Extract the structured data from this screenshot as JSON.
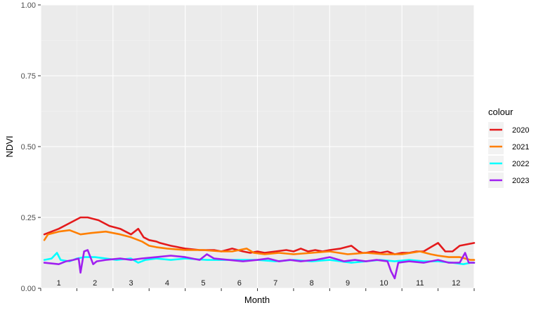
{
  "chart_data": {
    "type": "line",
    "xlabel": "Month",
    "ylabel": "NDVI",
    "ylim": [
      0,
      1
    ],
    "xlim": [
      0,
      12
    ],
    "y_ticks": [
      "0.00",
      "0.25",
      "0.50",
      "0.75",
      "1.00"
    ],
    "y_tick_values": [
      0,
      0.25,
      0.5,
      0.75,
      1.0
    ],
    "x_categories": [
      "1",
      "2",
      "3",
      "4",
      "5",
      "6",
      "7",
      "8",
      "9",
      "10",
      "11",
      "12"
    ],
    "grid": true,
    "legend": {
      "title": "colour",
      "placement": "right"
    },
    "series": [
      {
        "name": "2020",
        "color": "#e41a1c",
        "x": [
          0.1,
          0.5,
          0.8,
          1.1,
          1.3,
          1.6,
          1.9,
          2.2,
          2.5,
          2.7,
          2.85,
          3.0,
          3.2,
          3.3,
          3.6,
          4.0,
          4.4,
          4.8,
          5.0,
          5.3,
          5.6,
          5.8,
          6.0,
          6.2,
          6.5,
          6.8,
          7.0,
          7.2,
          7.4,
          7.6,
          7.8,
          8.0,
          8.3,
          8.6,
          8.8,
          8.9,
          9.0,
          9.2,
          9.4,
          9.6,
          9.8,
          10.0,
          10.2,
          10.4,
          10.6,
          10.8,
          11.0,
          11.2,
          11.4,
          11.6,
          11.8,
          12.0
        ],
        "values": [
          0.19,
          0.21,
          0.23,
          0.25,
          0.25,
          0.24,
          0.22,
          0.21,
          0.19,
          0.21,
          0.18,
          0.17,
          0.165,
          0.16,
          0.15,
          0.14,
          0.135,
          0.135,
          0.13,
          0.14,
          0.13,
          0.125,
          0.13,
          0.125,
          0.13,
          0.135,
          0.13,
          0.14,
          0.13,
          0.135,
          0.13,
          0.135,
          0.14,
          0.15,
          0.13,
          0.125,
          0.125,
          0.13,
          0.125,
          0.13,
          0.12,
          0.125,
          0.125,
          0.13,
          0.13,
          0.145,
          0.16,
          0.13,
          0.13,
          0.15,
          0.155,
          0.16
        ]
      },
      {
        "name": "2021",
        "color": "#ff7f00",
        "x": [
          0.1,
          0.2,
          0.5,
          0.8,
          1.1,
          1.4,
          1.8,
          2.2,
          2.5,
          2.8,
          3.0,
          3.2,
          3.5,
          4.0,
          4.5,
          5.0,
          5.3,
          5.7,
          5.9,
          6.2,
          6.6,
          7.0,
          7.5,
          8.0,
          8.5,
          9.0,
          9.5,
          10.0,
          10.5,
          10.8,
          11.0,
          11.3,
          11.6,
          11.9,
          12.0
        ],
        "values": [
          0.17,
          0.19,
          0.2,
          0.205,
          0.19,
          0.195,
          0.2,
          0.19,
          0.18,
          0.165,
          0.15,
          0.145,
          0.14,
          0.135,
          0.135,
          0.13,
          0.13,
          0.14,
          0.125,
          0.12,
          0.125,
          0.12,
          0.125,
          0.13,
          0.12,
          0.125,
          0.12,
          0.12,
          0.13,
          0.12,
          0.115,
          0.11,
          0.11,
          0.1,
          0.1
        ]
      },
      {
        "name": "2022",
        "color": "#00ffff",
        "x": [
          0.1,
          0.3,
          0.45,
          0.55,
          0.8,
          1.0,
          1.2,
          1.5,
          1.8,
          2.1,
          2.5,
          2.7,
          2.9,
          3.2,
          3.6,
          4.0,
          4.6,
          5.0,
          5.5,
          6.0,
          6.5,
          7.0,
          7.5,
          8.0,
          8.3,
          8.6,
          9.0,
          9.4,
          9.8,
          10.2,
          10.6,
          11.0,
          11.4,
          11.7,
          11.9,
          12.0
        ],
        "values": [
          0.1,
          0.105,
          0.125,
          0.1,
          0.095,
          0.105,
          0.11,
          0.11,
          0.105,
          0.1,
          0.105,
          0.09,
          0.1,
          0.105,
          0.1,
          0.105,
          0.1,
          0.1,
          0.1,
          0.1,
          0.095,
          0.1,
          0.095,
          0.1,
          0.095,
          0.09,
          0.095,
          0.1,
          0.095,
          0.1,
          0.095,
          0.095,
          0.09,
          0.085,
          0.09,
          0.09
        ]
      },
      {
        "name": "2023",
        "color": "#a020f0",
        "x": [
          0.1,
          0.5,
          0.7,
          0.9,
          1.05,
          1.1,
          1.2,
          1.3,
          1.45,
          1.55,
          1.8,
          2.2,
          2.5,
          2.8,
          3.2,
          3.6,
          4.0,
          4.4,
          4.6,
          4.8,
          5.2,
          5.6,
          6.0,
          6.3,
          6.6,
          6.9,
          7.2,
          7.6,
          8.0,
          8.4,
          8.7,
          9.0,
          9.3,
          9.6,
          9.7,
          9.8,
          9.9,
          10.2,
          10.6,
          11.0,
          11.3,
          11.6,
          11.75,
          11.85,
          12.0
        ],
        "values": [
          0.09,
          0.085,
          0.095,
          0.1,
          0.105,
          0.055,
          0.13,
          0.135,
          0.085,
          0.095,
          0.1,
          0.105,
          0.1,
          0.105,
          0.11,
          0.115,
          0.11,
          0.1,
          0.12,
          0.105,
          0.1,
          0.095,
          0.1,
          0.105,
          0.095,
          0.1,
          0.095,
          0.1,
          0.11,
          0.095,
          0.1,
          0.095,
          0.1,
          0.095,
          0.06,
          0.035,
          0.09,
          0.095,
          0.09,
          0.1,
          0.09,
          0.09,
          0.125,
          0.09,
          0.09
        ]
      }
    ]
  }
}
